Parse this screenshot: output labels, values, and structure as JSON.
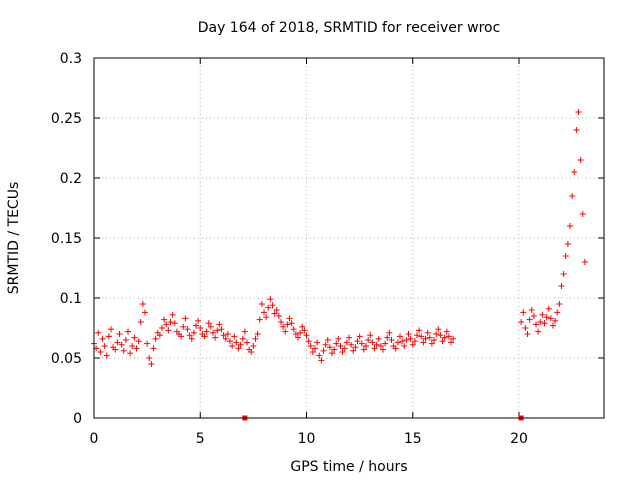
{
  "chart_data": {
    "type": "scatter",
    "title": "Day 164 of 2018, SRMTID for receiver wroc",
    "xlabel": "GPS time / hours",
    "ylabel": "SRMTID / TECUs",
    "xlim": [
      0,
      24
    ],
    "ylim": [
      0,
      0.3
    ],
    "xticks": [
      0,
      5,
      10,
      15,
      20
    ],
    "xtick_labels": [
      "0",
      "5",
      "10",
      "15",
      "20"
    ],
    "yticks": [
      0,
      0.05,
      0.1,
      0.15,
      0.2,
      0.25,
      0.3
    ],
    "ytick_labels": [
      "0",
      "0.05",
      "0.1",
      "0.15",
      "0.2",
      "0.25",
      "0.3"
    ],
    "grid": true,
    "marker": "plus",
    "color": "#ff0000",
    "series": [
      {
        "name": "SRMTID",
        "interval_hours": 0.1,
        "segments": [
          {
            "start": 0.0,
            "values": [
              0.062,
              0.058,
              0.071,
              0.055,
              0.066,
              0.06,
              0.052,
              0.068,
              0.074,
              0.059,
              0.057,
              0.063,
              0.07,
              0.061,
              0.056,
              0.065,
              0.072,
              0.054,
              0.06,
              0.067,
              0.058,
              0.064,
              0.08,
              0.095,
              0.088,
              0.062,
              0.05,
              0.045,
              0.058,
              0.066,
              0.071,
              0.069,
              0.075,
              0.082,
              0.078,
              0.073,
              0.08,
              0.086,
              0.079,
              0.072,
              0.07,
              0.068,
              0.076,
              0.083,
              0.074,
              0.069,
              0.066,
              0.071,
              0.077,
              0.081,
              0.075,
              0.07,
              0.068,
              0.072,
              0.079,
              0.076,
              0.071,
              0.067,
              0.073,
              0.078,
              0.074,
              0.069,
              0.066,
              0.07,
              0.064,
              0.06,
              0.068,
              0.063,
              0.058,
              0.061,
              0.066,
              0.072,
              0.063,
              0.057,
              0.055,
              0.06,
              0.066,
              0.07,
              0.082,
              0.095,
              0.088,
              0.084,
              0.092,
              0.099,
              0.094,
              0.087,
              0.09,
              0.085,
              0.08,
              0.076,
              0.072,
              0.078,
              0.083,
              0.079,
              0.074,
              0.07,
              0.067,
              0.071,
              0.076,
              0.073,
              0.069,
              0.064,
              0.06,
              0.055,
              0.058,
              0.063,
              0.052,
              0.048,
              0.056,
              0.061,
              0.065,
              0.059,
              0.054,
              0.057,
              0.062,
              0.066,
              0.06,
              0.055,
              0.058,
              0.063,
              0.067,
              0.061,
              0.056,
              0.059,
              0.064,
              0.068,
              0.062,
              0.057,
              0.06,
              0.065,
              0.069,
              0.063,
              0.058,
              0.061,
              0.066,
              0.06,
              0.057,
              0.062,
              0.067,
              0.071,
              0.065,
              0.06,
              0.058,
              0.063,
              0.068,
              0.064,
              0.06,
              0.065,
              0.07,
              0.066,
              0.061,
              0.064,
              0.069,
              0.073,
              0.068,
              0.063,
              0.066,
              0.071,
              0.067,
              0.062,
              0.065,
              0.07,
              0.074,
              0.069,
              0.064,
              0.067,
              0.072,
              0.068,
              0.063,
              0.066
            ]
          },
          {
            "start": 20.1,
            "values": [
              0.08,
              0.088,
              0.075,
              0.07,
              0.082,
              0.09,
              0.085,
              0.078,
              0.072,
              0.08,
              0.086,
              0.079,
              0.084,
              0.091,
              0.083,
              0.077,
              0.081,
              0.088,
              0.095,
              0.11,
              0.12,
              0.135,
              0.145,
              0.16,
              0.185,
              0.205,
              0.24,
              0.255,
              0.215,
              0.17,
              0.13
            ]
          }
        ]
      }
    ],
    "gap_markers": [
      7.1,
      20.1
    ]
  }
}
